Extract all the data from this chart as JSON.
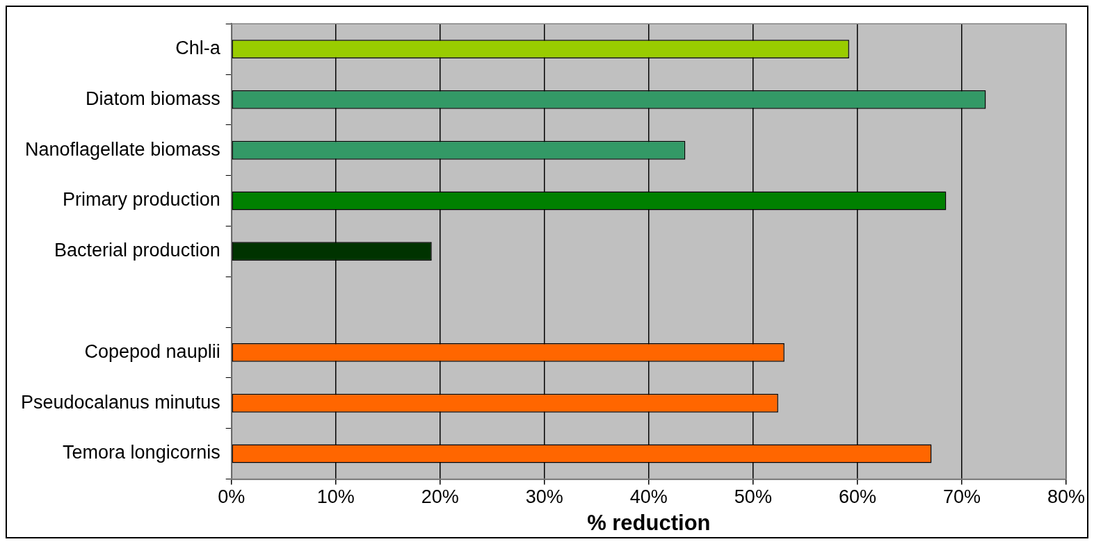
{
  "chart_data": {
    "type": "bar",
    "orientation": "horizontal",
    "xlabel": "% reduction",
    "categories": [
      "Chl-a",
      "Diatom biomass",
      "Nanoflagellate biomass",
      "Primary production",
      "Bacterial production",
      null,
      "Copepod nauplii",
      "Pseudocalanus minutus",
      "Temora longicornis"
    ],
    "values": [
      59.2,
      72.3,
      43.5,
      68.5,
      19.2,
      null,
      53.0,
      52.4,
      67.1
    ],
    "colors": [
      "#99cc00",
      "#339966",
      "#339966",
      "#008000",
      "#003300",
      "#808080",
      "#ff6600",
      "#ff6600",
      "#ff6600"
    ],
    "xlim": [
      0,
      80
    ],
    "xticks": [
      {
        "value": 0,
        "label": "0%"
      },
      {
        "value": 10,
        "label": "10%"
      },
      {
        "value": 20,
        "label": "20%"
      },
      {
        "value": 30,
        "label": "30%"
      },
      {
        "value": 40,
        "label": "40%"
      },
      {
        "value": 50,
        "label": "50%"
      },
      {
        "value": 60,
        "label": "60%"
      },
      {
        "value": 70,
        "label": "70%"
      },
      {
        "value": 80,
        "label": "80%"
      }
    ],
    "grid": "x",
    "legend": false
  }
}
